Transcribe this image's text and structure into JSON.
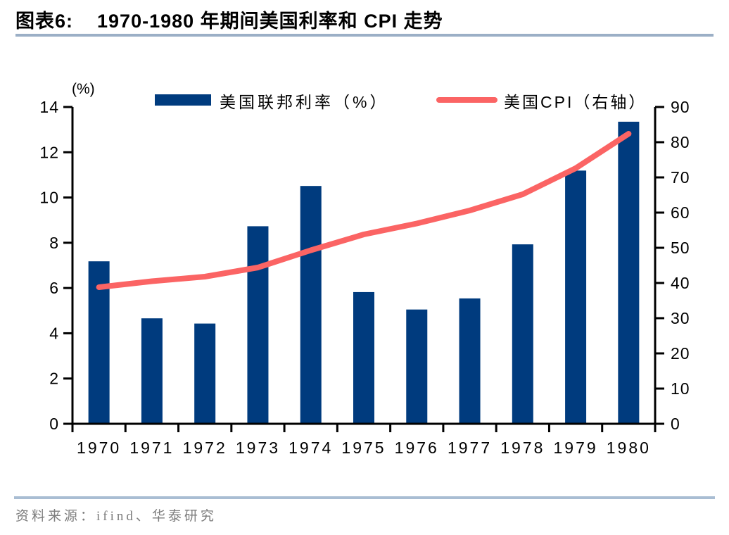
{
  "header": {
    "figure_label": "图表6:",
    "title": "1970-1980 年期间美国利率和 CPI 走势"
  },
  "chart_data": {
    "type": "bar+line",
    "title": "图表6: 1970-1980 年期间美国利率和 CPI 走势",
    "categories": [
      "1970",
      "1971",
      "1972",
      "1973",
      "1974",
      "1975",
      "1976",
      "1977",
      "1978",
      "1979",
      "1980"
    ],
    "series": [
      {
        "name": "美国联邦利率（%）",
        "type": "bar",
        "axis": "left",
        "color": "#003B7E",
        "values": [
          7.18,
          4.66,
          4.43,
          8.73,
          10.51,
          5.82,
          5.05,
          5.54,
          7.93,
          11.19,
          13.35
        ]
      },
      {
        "name": "美国CPI（右轴）",
        "type": "line",
        "axis": "right",
        "color": "#FB6464",
        "values": [
          38.8,
          40.5,
          41.8,
          44.4,
          49.3,
          53.8,
          56.9,
          60.6,
          65.2,
          72.6,
          82.4
        ]
      }
    ],
    "left_axis": {
      "label": "(%)",
      "min": 0,
      "max": 14,
      "step": 2
    },
    "right_axis": {
      "label": "右轴",
      "min": 0,
      "max": 90,
      "step": 10
    },
    "legend_position": "top",
    "grid": false,
    "axis_color": "#000000"
  },
  "footer": {
    "source": "资料来源：ifind、华泰研究"
  }
}
